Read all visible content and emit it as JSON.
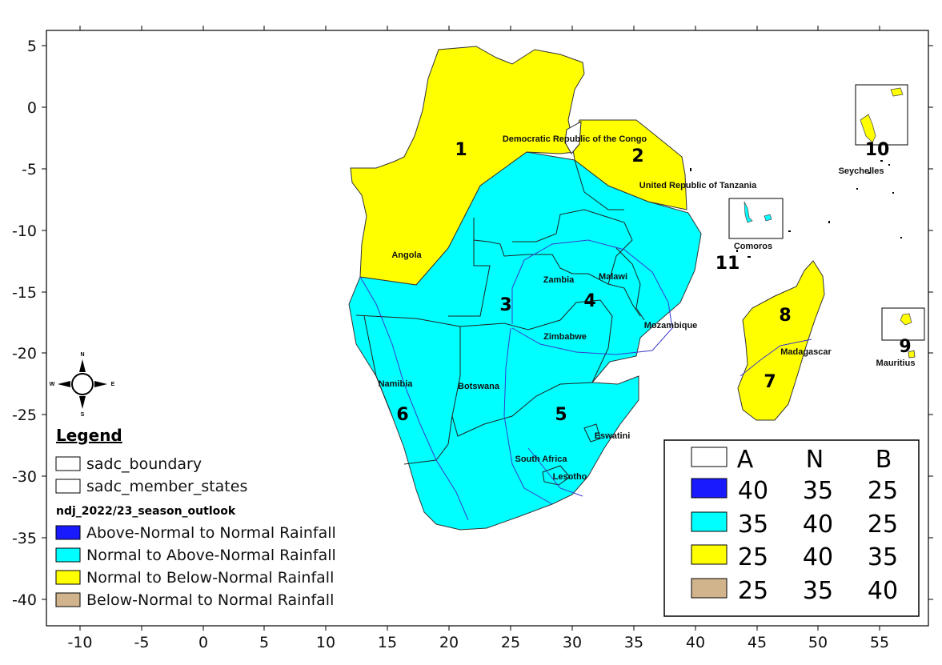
{
  "map": {
    "x_ticks": [
      "-10",
      "-5",
      "0",
      "5",
      "10",
      "15",
      "20",
      "25",
      "30",
      "35",
      "40",
      "45",
      "50",
      "55"
    ],
    "y_ticks": [
      "5",
      "0",
      "-5",
      "-10",
      "-15",
      "-20",
      "-25",
      "-30",
      "-35",
      "-40"
    ],
    "countries": {
      "drc": "Democratic Republic of the Congo",
      "tanzania": "United Republic of Tanzania",
      "angola": "Angola",
      "zambia": "Zambia",
      "malawi": "Malawi",
      "mozambique": "Mozambique",
      "zimbabwe": "Zimbabwe",
      "namibia": "Namibia",
      "botswana": "Botswana",
      "south_africa": "South Africa",
      "lesotho": "Lesotho",
      "eswatini": "Eswatini",
      "madagascar": "Madagascar",
      "comoros": "Comoros",
      "seychelles": "Seychelles",
      "mauritius": "Mauritius"
    },
    "zones": [
      "1",
      "2",
      "3",
      "4",
      "5",
      "6",
      "7",
      "8",
      "9",
      "10",
      "11"
    ],
    "compass": {
      "n": "N",
      "s": "S",
      "e": "E",
      "w": "W"
    }
  },
  "legend": {
    "title": "Legend",
    "boundary": "sadc_boundary",
    "member_states": "sadc_member_states",
    "layer": "ndj_2022/23_season_outlook",
    "categories": [
      {
        "label": "Above-Normal to Normal Rainfall",
        "color": "#1a1aff"
      },
      {
        "label": "Normal to Above-Normal Rainfall",
        "color": "#00ffff"
      },
      {
        "label": "Normal to Below-Normal Rainfall",
        "color": "#ffff00"
      },
      {
        "label": "Below-Normal to Normal Rainfall",
        "color": "#d2b48c"
      }
    ]
  },
  "probability_table": {
    "headers": [
      "A",
      "N",
      "B"
    ],
    "rows": [
      {
        "color": "#1a1aff",
        "values": [
          "40",
          "35",
          "25"
        ]
      },
      {
        "color": "#00ffff",
        "values": [
          "35",
          "40",
          "25"
        ]
      },
      {
        "color": "#ffff00",
        "values": [
          "25",
          "40",
          "35"
        ]
      },
      {
        "color": "#d2b48c",
        "values": [
          "25",
          "35",
          "40"
        ]
      }
    ]
  }
}
